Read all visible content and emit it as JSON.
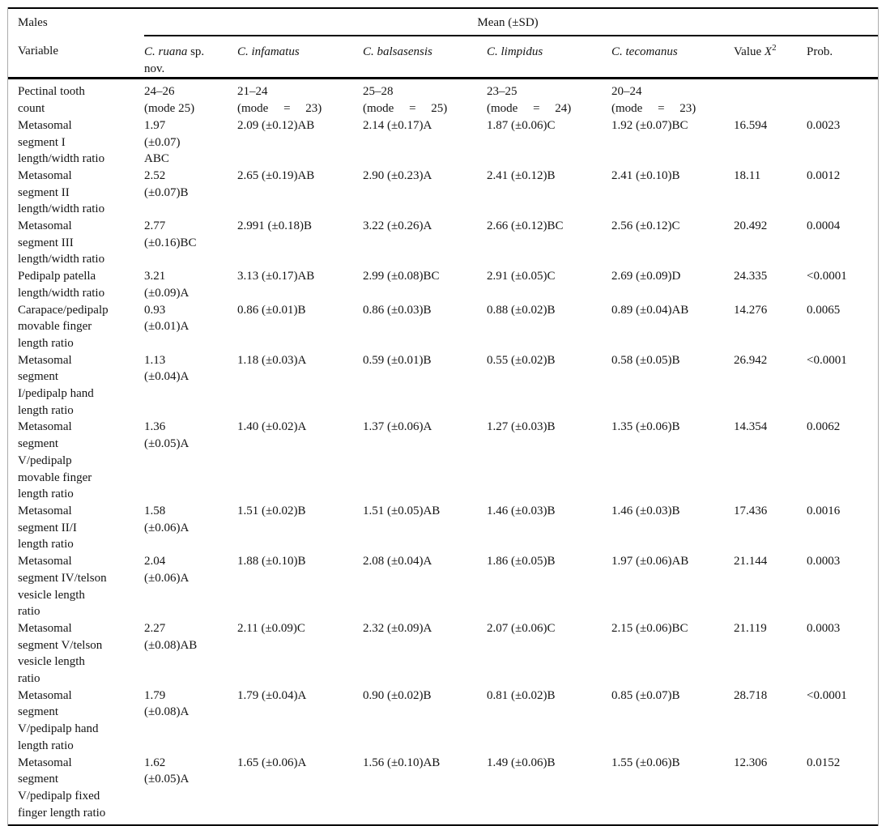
{
  "colors": {
    "rule": "#000000",
    "side_border": "#ababab",
    "text": "#141414"
  },
  "table": {
    "males_label": "Males",
    "group_header": "Mean (±SD)",
    "header": {
      "variable": "Variable",
      "species": [
        "C. ruana",
        "C. infamatus",
        "C. balsasensis",
        "C. limpidus",
        "C. tecomanus"
      ],
      "ruana_suffix": "sp. nov.",
      "value_label": "Value",
      "value_sym": "X",
      "value_exp": "2",
      "prob": "Prob."
    },
    "rows": [
      {
        "variable": [
          "Pectinal tooth",
          "count"
        ],
        "values": [
          [
            "24–26",
            "(mode 25)"
          ],
          [
            "21–24",
            "(mode = 23)"
          ],
          [
            "25–28",
            "(mode = 25)"
          ],
          [
            "23–25",
            "(mode = 24)"
          ],
          [
            "20–24",
            "(mode = 23)"
          ]
        ],
        "chi": "",
        "prob": ""
      },
      {
        "variable": [
          "Metasomal",
          "segment I",
          "length/width ratio"
        ],
        "values": [
          [
            "1.97",
            "(±0.07)",
            "ABC"
          ],
          [
            "2.09 (±0.12)AB"
          ],
          [
            "2.14 (±0.17)A"
          ],
          [
            "1.87 (±0.06)C"
          ],
          [
            "1.92 (±0.07)BC"
          ]
        ],
        "chi": "16.594",
        "prob": "0.0023"
      },
      {
        "variable": [
          "Metasomal",
          "segment II",
          "length/width ratio"
        ],
        "values": [
          [
            "2.52",
            "(±0.07)B"
          ],
          [
            "2.65 (±0.19)AB"
          ],
          [
            "2.90 (±0.23)A"
          ],
          [
            "2.41 (±0.12)B"
          ],
          [
            "2.41 (±0.10)B"
          ]
        ],
        "chi": "18.11",
        "prob": "0.0012"
      },
      {
        "variable": [
          "Metasomal",
          "segment III",
          "length/width ratio"
        ],
        "values": [
          [
            "2.77",
            "(±0.16)BC"
          ],
          [
            "2.991 (±0.18)B"
          ],
          [
            "3.22 (±0.26)A"
          ],
          [
            "2.66 (±0.12)BC"
          ],
          [
            "2.56 (±0.12)C"
          ]
        ],
        "chi": "20.492",
        "prob": "0.0004"
      },
      {
        "variable": [
          "Pedipalp patella",
          "length/width ratio"
        ],
        "values": [
          [
            "3.21",
            "(±0.09)A"
          ],
          [
            "3.13 (±0.17)AB"
          ],
          [
            "2.99 (±0.08)BC"
          ],
          [
            "2.91 (±0.05)C"
          ],
          [
            "2.69 (±0.09)D"
          ]
        ],
        "chi": "24.335",
        "prob": "<0.0001"
      },
      {
        "variable": [
          "Carapace/pedipalp",
          "movable finger",
          "length ratio"
        ],
        "values": [
          [
            "0.93",
            "(±0.01)A"
          ],
          [
            "0.86 (±0.01)B"
          ],
          [
            "0.86 (±0.03)B"
          ],
          [
            "0.88 (±0.02)B"
          ],
          [
            "0.89 (±0.04)AB"
          ]
        ],
        "chi": "14.276",
        "prob": "0.0065"
      },
      {
        "variable": [
          "Metasomal",
          "segment",
          "I/pedipalp hand",
          "length ratio"
        ],
        "values": [
          [
            "1.13",
            "(±0.04)A"
          ],
          [
            "1.18 (±0.03)A"
          ],
          [
            "0.59 (±0.01)B"
          ],
          [
            "0.55 (±0.02)B"
          ],
          [
            "0.58 (±0.05)B"
          ]
        ],
        "chi": "26.942",
        "prob": "<0.0001"
      },
      {
        "variable": [
          "Metasomal",
          "segment",
          "V/pedipalp",
          "movable finger",
          "length ratio"
        ],
        "values": [
          [
            "1.36",
            "(±0.05)A"
          ],
          [
            "1.40 (±0.02)A"
          ],
          [
            "1.37 (±0.06)A"
          ],
          [
            "1.27 (±0.03)B"
          ],
          [
            "1.35 (±0.06)B"
          ]
        ],
        "chi": "14.354",
        "prob": "0.0062"
      },
      {
        "variable": [
          "Metasomal",
          "segment II/I",
          "length ratio"
        ],
        "values": [
          [
            "1.58",
            "(±0.06)A"
          ],
          [
            "1.51 (±0.02)B"
          ],
          [
            "1.51 (±0.05)AB"
          ],
          [
            "1.46 (±0.03)B"
          ],
          [
            "1.46 (±0.03)B"
          ]
        ],
        "chi": "17.436",
        "prob": "0.0016"
      },
      {
        "variable": [
          "Metasomal",
          "segment IV/telson",
          "vesicle length",
          "ratio"
        ],
        "values": [
          [
            "2.04",
            "(±0.06)A"
          ],
          [
            "1.88 (±0.10)B"
          ],
          [
            "2.08 (±0.04)A"
          ],
          [
            "1.86 (±0.05)B"
          ],
          [
            "1.97 (±0.06)AB"
          ]
        ],
        "chi": "21.144",
        "prob": "0.0003"
      },
      {
        "variable": [
          "Metasomal",
          "segment V/telson",
          "vesicle length",
          "ratio"
        ],
        "values": [
          [
            "2.27",
            "(±0.08)AB"
          ],
          [
            "2.11 (±0.09)C"
          ],
          [
            "2.32 (±0.09)A"
          ],
          [
            "2.07 (±0.06)C"
          ],
          [
            "2.15 (±0.06)BC"
          ]
        ],
        "chi": "21.119",
        "prob": "0.0003"
      },
      {
        "variable": [
          "Metasomal",
          "segment",
          "V/pedipalp hand",
          "length ratio"
        ],
        "values": [
          [
            "1.79",
            "(±0.08)A"
          ],
          [
            "1.79 (±0.04)A"
          ],
          [
            "0.90 (±0.02)B"
          ],
          [
            "0.81 (±0.02)B"
          ],
          [
            "0.85 (±0.07)B"
          ]
        ],
        "chi": "28.718",
        "prob": "<0.0001"
      },
      {
        "variable": [
          "Metasomal",
          "segment",
          "V/pedipalp fixed",
          "finger length ratio"
        ],
        "values": [
          [
            "1.62",
            "(±0.05)A"
          ],
          [
            "1.65 (±0.06)A"
          ],
          [
            "1.56 (±0.10)AB"
          ],
          [
            "1.49 (±0.06)B"
          ],
          [
            "1.55 (±0.06)B"
          ]
        ],
        "chi": "12.306",
        "prob": "0.0152"
      }
    ]
  }
}
